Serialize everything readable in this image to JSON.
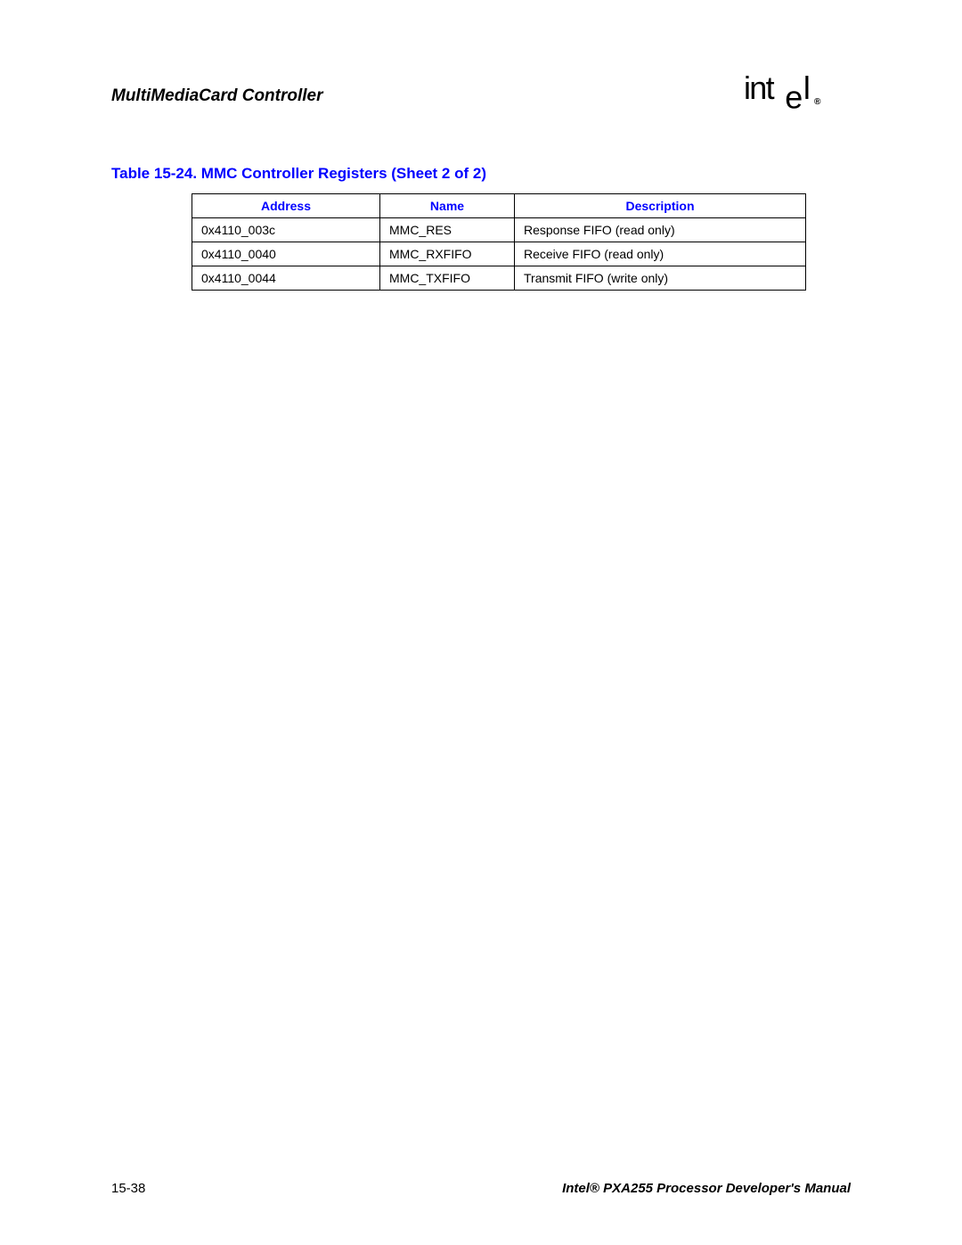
{
  "header": {
    "section_title": "MultiMediaCard Controller",
    "logo_text": "intel",
    "logo_registered": "®"
  },
  "table": {
    "caption": "Table 15-24. MMC Controller Registers (Sheet 2 of 2)",
    "columns": [
      "Address",
      "Name",
      "Description"
    ],
    "rows": [
      [
        "0x4110_003c",
        "MMC_RES",
        "Response FIFO (read only)"
      ],
      [
        "0x4110_0040",
        "MMC_RXFIFO",
        "Receive FIFO (read only)"
      ],
      [
        "0x4110_0044",
        "MMC_TXFIFO",
        "Transmit FIFO (write only)"
      ]
    ],
    "header_color": "#0000ff",
    "cell_color": "#000000",
    "border_color": "#000000",
    "caption_color": "#0000ff",
    "caption_fontsize": 17,
    "cell_fontsize": 14
  },
  "footer": {
    "page_number": "15-38",
    "manual_title": "Intel® PXA255 Processor Developer's Manual"
  }
}
